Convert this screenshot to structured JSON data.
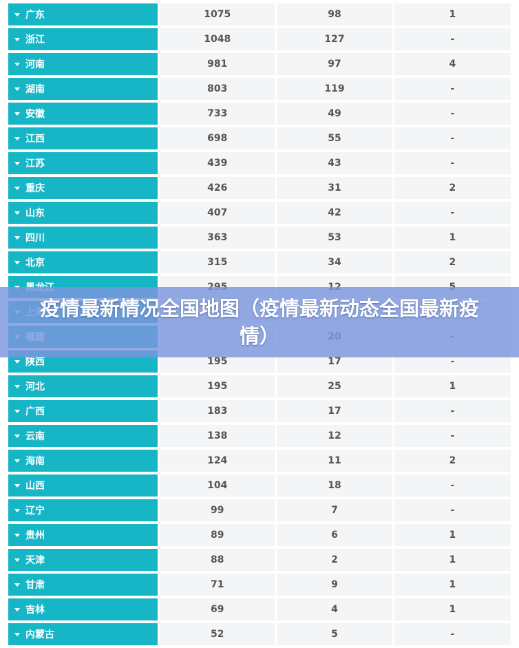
{
  "overlay": {
    "title": "疫情最新情况全国地图（疫情最新动态全国最新疫情）"
  },
  "rows": [
    {
      "name": "广东",
      "c1": "1075",
      "c2": "98",
      "c3": "1"
    },
    {
      "name": "浙江",
      "c1": "1048",
      "c2": "127",
      "c3": "-"
    },
    {
      "name": "河南",
      "c1": "981",
      "c2": "97",
      "c3": "4"
    },
    {
      "name": "湖南",
      "c1": "803",
      "c2": "119",
      "c3": "-"
    },
    {
      "name": "安徽",
      "c1": "733",
      "c2": "49",
      "c3": "-"
    },
    {
      "name": "江西",
      "c1": "698",
      "c2": "55",
      "c3": "-"
    },
    {
      "name": "江苏",
      "c1": "439",
      "c2": "43",
      "c3": "-"
    },
    {
      "name": "重庆",
      "c1": "426",
      "c2": "31",
      "c3": "2"
    },
    {
      "name": "山东",
      "c1": "407",
      "c2": "42",
      "c3": "-"
    },
    {
      "name": "四川",
      "c1": "363",
      "c2": "53",
      "c3": "1"
    },
    {
      "name": "北京",
      "c1": "315",
      "c2": "34",
      "c3": "2"
    },
    {
      "name": "黑龙江",
      "c1": "295",
      "c2": "12",
      "c3": "5"
    },
    {
      "name": "上海",
      "c1": "",
      "c2": "",
      "c3": ""
    },
    {
      "name": "福建",
      "c1": "",
      "c2": "20",
      "c3": "-"
    },
    {
      "name": "陕西",
      "c1": "195",
      "c2": "17",
      "c3": "-"
    },
    {
      "name": "河北",
      "c1": "195",
      "c2": "25",
      "c3": "1"
    },
    {
      "name": "广西",
      "c1": "183",
      "c2": "17",
      "c3": "-"
    },
    {
      "name": "云南",
      "c1": "138",
      "c2": "12",
      "c3": "-"
    },
    {
      "name": "海南",
      "c1": "124",
      "c2": "11",
      "c3": "2"
    },
    {
      "name": "山西",
      "c1": "104",
      "c2": "18",
      "c3": "-"
    },
    {
      "name": "辽宁",
      "c1": "99",
      "c2": "7",
      "c3": "-"
    },
    {
      "name": "贵州",
      "c1": "89",
      "c2": "6",
      "c3": "1"
    },
    {
      "name": "天津",
      "c1": "88",
      "c2": "2",
      "c3": "1"
    },
    {
      "name": "甘肃",
      "c1": "71",
      "c2": "9",
      "c3": "1"
    },
    {
      "name": "吉林",
      "c1": "69",
      "c2": "4",
      "c3": "1"
    },
    {
      "name": "内蒙古",
      "c1": "52",
      "c2": "5",
      "c3": "-"
    }
  ]
}
